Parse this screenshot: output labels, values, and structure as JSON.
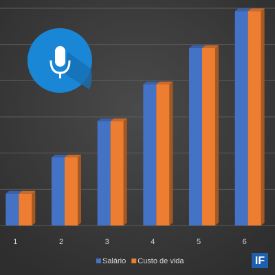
{
  "chart_data": {
    "type": "bar3d",
    "categories": [
      "1",
      "2",
      "3",
      "4",
      "5",
      "6"
    ],
    "series": [
      {
        "name": "Salário",
        "color": "#4472c4",
        "values": [
          0.88,
          1.88,
          2.88,
          3.9,
          4.9,
          5.92
        ]
      },
      {
        "name": "Custo de vida",
        "color": "#ed7d31",
        "values": [
          0.88,
          1.88,
          2.88,
          3.9,
          4.9,
          5.92
        ]
      }
    ],
    "ylim": [
      0,
      6
    ],
    "yticks": [
      0,
      1,
      2,
      3,
      4,
      5,
      6
    ],
    "grid": true
  },
  "logo": "IF"
}
